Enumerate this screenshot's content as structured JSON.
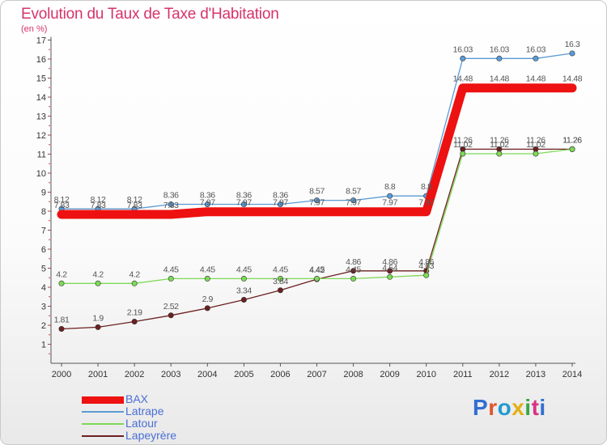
{
  "title": "Evolution du Taux de Taxe d'Habitation",
  "subtitle": "(en %)",
  "brand": {
    "text": "Proxiti",
    "letter_colors": [
      "#2f6fd1",
      "#e0582b",
      "#1f9bd1",
      "#e2b011",
      "#3aa64a",
      "#d63384",
      "#2f6fd1"
    ]
  },
  "colors": {
    "axis": "#555555",
    "grid_dot": "#e04040",
    "tick_text": "#333333",
    "value_text": "#555555"
  },
  "chart_data": {
    "type": "line",
    "x": [
      "2000",
      "2001",
      "2002",
      "2003",
      "2004",
      "2005",
      "2006",
      "2007",
      "2008",
      "2009",
      "2010",
      "2011",
      "2012",
      "2013",
      "2014"
    ],
    "ylim": [
      0,
      17
    ],
    "yticks": [
      "1",
      "2",
      "3",
      "4",
      "5",
      "6",
      "7",
      "8",
      "9",
      "10",
      "11",
      "12",
      "13",
      "14",
      "15",
      "16",
      "17"
    ],
    "legend_position": "bottom-left",
    "series": [
      {
        "name": "BAX",
        "color": "#ee1111",
        "thick": true,
        "values": [
          7.83,
          7.83,
          7.83,
          7.83,
          7.97,
          7.97,
          7.97,
          7.97,
          7.97,
          7.97,
          7.97,
          14.48,
          14.48,
          14.48,
          14.48
        ],
        "labels": [
          "7.83",
          "7.83",
          "7.83",
          "7.83",
          "7.97",
          "7.97",
          "7.97",
          "7.97",
          "7.97",
          "7.97",
          "7.97",
          "14.48",
          "14.48",
          "14.48",
          "14.48"
        ]
      },
      {
        "name": "Latrape",
        "color": "#5b9bd5",
        "values": [
          8.12,
          8.12,
          8.12,
          8.36,
          8.36,
          8.36,
          8.36,
          8.57,
          8.57,
          8.8,
          8.8,
          16.03,
          16.03,
          16.03,
          16.3
        ],
        "labels": [
          "8.12",
          "8.12",
          "8.12",
          "8.36",
          "8.36",
          "8.36",
          "8.36",
          "8.57",
          "8.57",
          "8.8",
          "8.8",
          "16.03",
          "16.03",
          "16.03",
          "16.3"
        ]
      },
      {
        "name": "Latour",
        "color": "#7ed957",
        "values": [
          4.2,
          4.2,
          4.2,
          4.45,
          4.45,
          4.45,
          4.45,
          4.45,
          4.45,
          4.54,
          4.63,
          11.02,
          11.02,
          11.02,
          11.26
        ],
        "labels": [
          "4.2",
          "4.2",
          "4.2",
          "4.45",
          "4.45",
          "4.45",
          "4.45",
          "4.45",
          "4.45",
          "4.54",
          "4.63",
          "11.02",
          "11.02",
          "11.02",
          "11.26"
        ]
      },
      {
        "name": "Lapeyrère",
        "color": "#6b2020",
        "values": [
          1.81,
          1.9,
          2.19,
          2.52,
          2.9,
          3.34,
          3.84,
          4.42,
          4.86,
          4.86,
          4.86,
          11.26,
          11.26,
          11.26,
          11.26
        ],
        "labels": [
          "1.81",
          "1.9",
          "2.19",
          "2.52",
          "2.9",
          "3.34",
          "3.84",
          "4.42",
          "4.86",
          "4.86",
          "4.86",
          "11.26",
          "11.26",
          "11.26",
          "11.26"
        ]
      }
    ]
  }
}
